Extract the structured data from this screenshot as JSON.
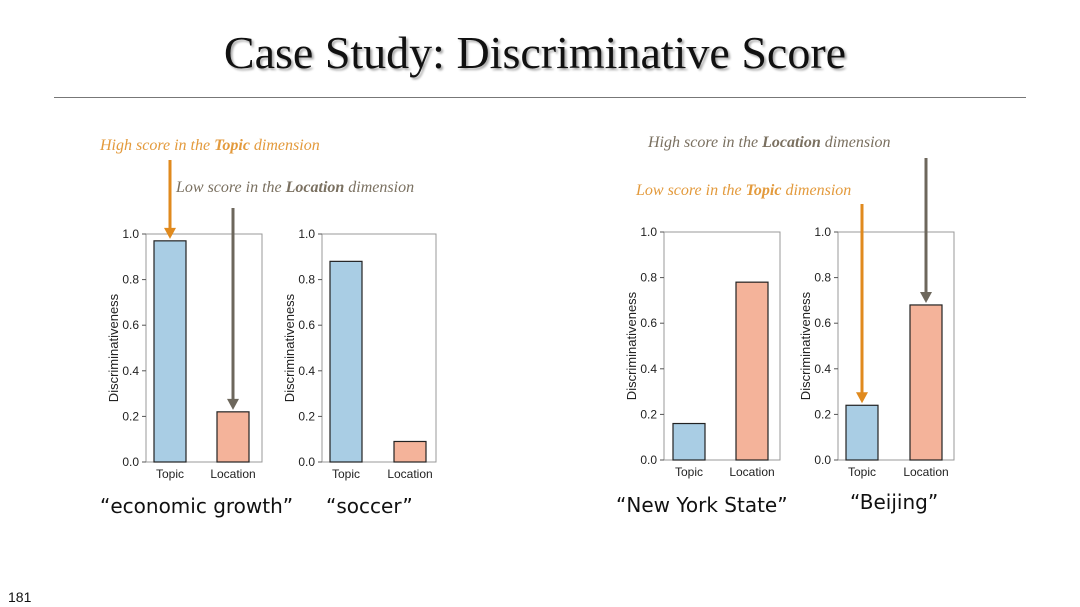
{
  "slide": {
    "title": "Case Study: Discriminative Score",
    "page_number": "181"
  },
  "annotations": {
    "left_high": {
      "prefix": "High score in the ",
      "bold": "Topic",
      "suffix": " dimension"
    },
    "left_low": {
      "prefix": "Low score in the ",
      "bold": "Location",
      "suffix": " dimension"
    },
    "right_high": {
      "prefix": "High score in the ",
      "bold": "Location",
      "suffix": " dimension"
    },
    "right_low": {
      "prefix": "Low score in the ",
      "bold": "Topic",
      "suffix": " dimension"
    }
  },
  "colors": {
    "topic_bar": "#a9cde4",
    "location_bar": "#f4b39a",
    "orange_arrow": "#e08a1e",
    "gray_arrow": "#6d675c"
  },
  "chart_data": [
    {
      "type": "bar",
      "caption": "“economic growth”",
      "categories": [
        "Topic",
        "Location"
      ],
      "values": [
        0.97,
        0.22
      ],
      "ylabel": "Discriminativeness",
      "ylim": [
        0,
        1.0
      ],
      "yticks": [
        "0.0",
        "0.2",
        "0.4",
        "0.6",
        "0.8",
        "1.0"
      ]
    },
    {
      "type": "bar",
      "caption": "“soccer”",
      "categories": [
        "Topic",
        "Location"
      ],
      "values": [
        0.88,
        0.09
      ],
      "ylabel": "Discriminativeness",
      "ylim": [
        0,
        1.0
      ],
      "yticks": [
        "0.0",
        "0.2",
        "0.4",
        "0.6",
        "0.8",
        "1.0"
      ]
    },
    {
      "type": "bar",
      "caption": "“New York State”",
      "categories": [
        "Topic",
        "Location"
      ],
      "values": [
        0.16,
        0.78
      ],
      "ylabel": "Discriminativeness",
      "ylim": [
        0,
        1.0
      ],
      "yticks": [
        "0.0",
        "0.2",
        "0.4",
        "0.6",
        "0.8",
        "1.0"
      ]
    },
    {
      "type": "bar",
      "caption": "“Beijing”",
      "categories": [
        "Topic",
        "Location"
      ],
      "values": [
        0.24,
        0.68
      ],
      "ylabel": "Discriminativeness",
      "ylim": [
        0,
        1.0
      ],
      "yticks": [
        "0.0",
        "0.2",
        "0.4",
        "0.6",
        "0.8",
        "1.0"
      ]
    }
  ]
}
